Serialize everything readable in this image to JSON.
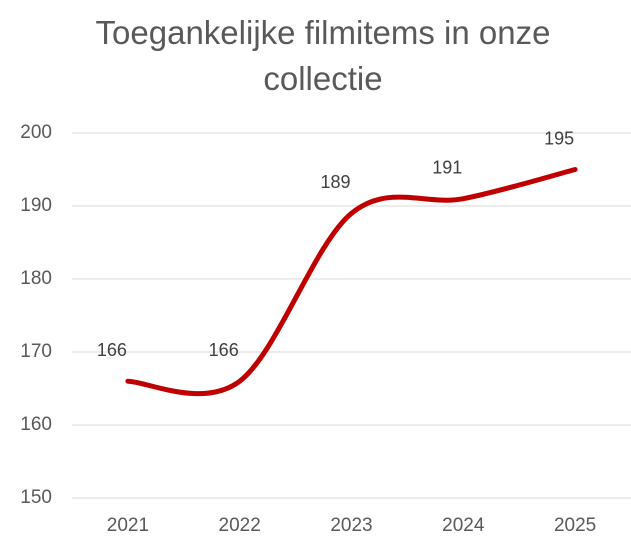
{
  "chart_data": {
    "type": "line",
    "title": "Toegankelijke filmitems in onze collectie",
    "categories": [
      "2021",
      "2022",
      "2023",
      "2024",
      "2025"
    ],
    "values": [
      166,
      166,
      189,
      191,
      195
    ],
    "color": "#c00000",
    "smooth": true,
    "ylim": [
      150,
      200
    ],
    "yticks": [
      150,
      160,
      170,
      180,
      190,
      200
    ],
    "grid": true
  }
}
